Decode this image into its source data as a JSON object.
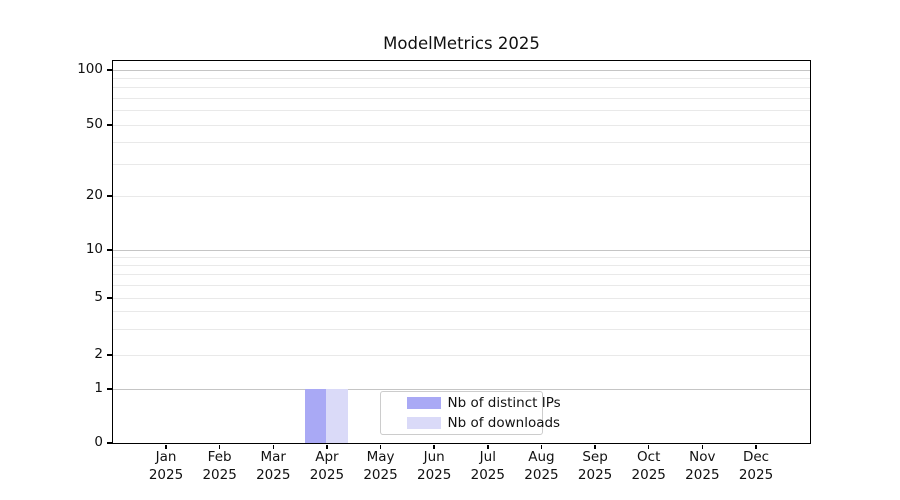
{
  "chart_data": {
    "type": "bar",
    "title": "ModelMetrics 2025",
    "categories": [
      "Jan",
      "Feb",
      "Mar",
      "Apr",
      "May",
      "Jun",
      "Jul",
      "Aug",
      "Sep",
      "Oct",
      "Nov",
      "Dec"
    ],
    "x_tick_year": "2025",
    "series": [
      {
        "name": "Nb of distinct IPs",
        "color": "#a9a9f5",
        "values": [
          0,
          0,
          0,
          1,
          0,
          0,
          0,
          0,
          0,
          0,
          0,
          0
        ]
      },
      {
        "name": "Nb of downloads",
        "color": "#dadaf8",
        "values": [
          0,
          0,
          0,
          1,
          0,
          0,
          0,
          0,
          0,
          0,
          0,
          0
        ]
      }
    ],
    "yscale": "symlog",
    "y_ticks": [
      0,
      1,
      2,
      5,
      10,
      20,
      50,
      100
    ],
    "y_minor_gridlines": [
      3,
      4,
      6,
      7,
      8,
      9,
      30,
      40,
      60,
      70,
      80,
      90
    ],
    "ylim": [
      0,
      110
    ],
    "grid": "horizontal",
    "legend_position": "lower-center",
    "palette": {
      "grid_major": "#c5c5c5",
      "grid_minor": "#e9e9e9",
      "axis": "#000000",
      "text": "#111111",
      "legend_border": "#cccccc",
      "background": "#ffffff"
    }
  }
}
